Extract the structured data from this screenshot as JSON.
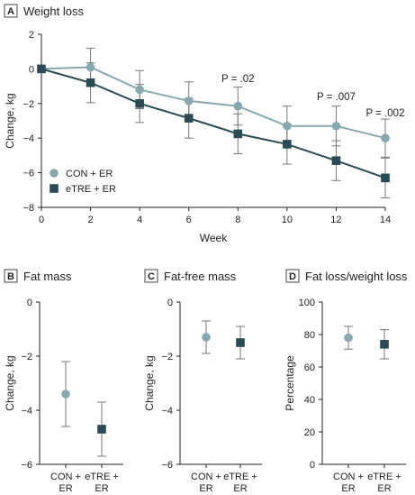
{
  "colors": {
    "con": "#86a8b0",
    "etre": "#2a4a55",
    "error_bar": "#777777"
  },
  "chart_data": [
    {
      "panel": "A",
      "type": "line",
      "title": "Weight loss",
      "xlabel": "Week",
      "ylabel": "Change, kg",
      "xlim": [
        0,
        14
      ],
      "ylim": [
        -8,
        2
      ],
      "xticks": [
        0,
        2,
        4,
        6,
        8,
        10,
        12,
        14
      ],
      "yticks": [
        2,
        0,
        -2,
        -4,
        -6,
        -8
      ],
      "legend_position": "bottom-left",
      "series": [
        {
          "name": "CON + ER",
          "key": "con",
          "marker": "circle",
          "x": [
            0,
            2,
            4,
            6,
            8,
            10,
            12,
            14
          ],
          "y": [
            0,
            0.1,
            -1.2,
            -1.85,
            -2.15,
            -3.3,
            -3.3,
            -4.0
          ],
          "err": [
            0,
            1.1,
            1.1,
            1.1,
            1.1,
            1.15,
            1.15,
            1.1
          ]
        },
        {
          "name": "eTRE + ER",
          "key": "etre",
          "marker": "square",
          "x": [
            0,
            2,
            4,
            6,
            8,
            10,
            12,
            14
          ],
          "y": [
            0,
            -0.8,
            -2.0,
            -2.85,
            -3.75,
            -4.35,
            -5.3,
            -6.3
          ],
          "err": [
            0,
            1.15,
            1.1,
            1.15,
            1.15,
            1.15,
            1.15,
            1.15
          ]
        }
      ],
      "annotations": [
        {
          "text": "P = .02",
          "x": 8
        },
        {
          "text": "P = .007",
          "x": 12
        },
        {
          "text": "P = .002",
          "x": 14
        }
      ]
    },
    {
      "panel": "B",
      "type": "scatter",
      "title": "Fat mass",
      "ylabel": "Change, kg",
      "ylim": [
        -6,
        0
      ],
      "yticks": [
        0,
        -2,
        -4,
        -6
      ],
      "categories": [
        [
          "CON +",
          "ER"
        ],
        [
          "eTRE +",
          "ER"
        ]
      ],
      "points": [
        {
          "key": "con",
          "marker": "circle",
          "value": -3.4,
          "err": 1.2
        },
        {
          "key": "etre",
          "marker": "square",
          "value": -4.7,
          "err": 1.0
        }
      ]
    },
    {
      "panel": "C",
      "type": "scatter",
      "title": "Fat-free mass",
      "ylabel": "Change, kg",
      "ylim": [
        -6,
        0
      ],
      "yticks": [
        0,
        -2,
        -4,
        -6
      ],
      "categories": [
        [
          "CON +",
          "ER"
        ],
        [
          "eTRE +",
          "ER"
        ]
      ],
      "points": [
        {
          "key": "con",
          "marker": "circle",
          "value": -1.3,
          "err": 0.6
        },
        {
          "key": "etre",
          "marker": "square",
          "value": -1.5,
          "err": 0.6
        }
      ]
    },
    {
      "panel": "D",
      "type": "scatter",
      "title": "Fat loss/weight loss",
      "ylabel": "Percentage",
      "ylim": [
        0,
        100
      ],
      "yticks": [
        0,
        20,
        40,
        60,
        80,
        100
      ],
      "categories": [
        [
          "CON +",
          "ER"
        ],
        [
          "eTRE +",
          "ER"
        ]
      ],
      "points": [
        {
          "key": "con",
          "marker": "circle",
          "value": 78,
          "err": 7
        },
        {
          "key": "etre",
          "marker": "square",
          "value": 74,
          "err": 9
        }
      ]
    }
  ]
}
